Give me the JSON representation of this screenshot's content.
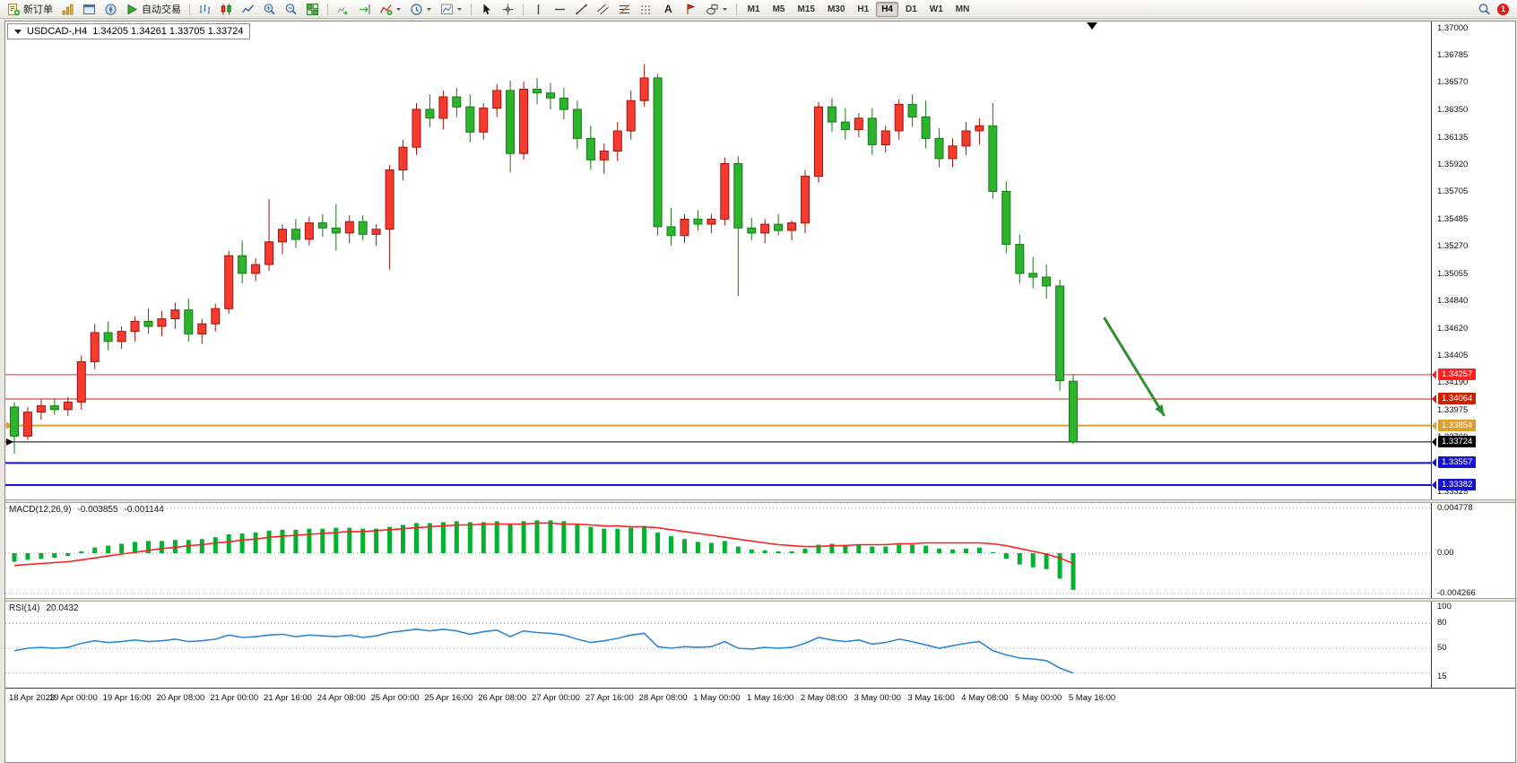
{
  "toolbar": {
    "new_order_label": "新订单",
    "auto_trading_label": "自动交易",
    "text_tool_label": "A",
    "timeframes": [
      "M1",
      "M5",
      "M15",
      "M30",
      "H1",
      "H4",
      "D1",
      "W1",
      "MN"
    ],
    "active_timeframe": "H4",
    "notification_count": "1"
  },
  "chart": {
    "symbol_label": "USDCAD-,H4",
    "ohlc_text": "1.34205 1.34261 1.33705 1.33724"
  },
  "chart_data": {
    "type": "candlestick",
    "symbol": "USDCAD",
    "timeframe": "H4",
    "current_ohlc": {
      "open": 1.34205,
      "high": 1.34261,
      "low": 1.33705,
      "close": 1.33724
    },
    "colors": {
      "bull": "#f53b30",
      "bull_edge": "#a31208",
      "bear": "#2db32d",
      "bear_edge": "#157a15",
      "macd_histogram": "#00b22d",
      "macd_signal": "#ff2020",
      "rsi_line": "#2f86d4",
      "arrow": "#2f8f2f"
    },
    "price_axis_ticks": [
      "1.37000",
      "1.36785",
      "1.36570",
      "1.36350",
      "1.36135",
      "1.35920",
      "1.35705",
      "1.35485",
      "1.35270",
      "1.35055",
      "1.34840",
      "1.34620",
      "1.34405",
      "1.34190",
      "1.33975",
      "1.33760",
      "1.33545",
      "1.33325"
    ],
    "time_labels": [
      "18 Apr 2023",
      "19 Apr 00:00",
      "19 Apr 16:00",
      "20 Apr 08:00",
      "21 Apr 00:00",
      "21 Apr 16:00",
      "24 Apr 08:00",
      "25 Apr 00:00",
      "25 Apr 16:00",
      "26 Apr 08:00",
      "27 Apr 00:00",
      "27 Apr 16:00",
      "28 Apr 08:00",
      "1 May 00:00",
      "1 May 16:00",
      "2 May 08:00",
      "3 May 00:00",
      "3 May 16:00",
      "4 May 08:00",
      "5 May 00:00",
      "5 May 16:00"
    ],
    "hlines": [
      {
        "price": 1.34257,
        "label": "1.34257",
        "color": "#ff2020",
        "width": 1,
        "left_marker": false
      },
      {
        "price": 1.34064,
        "label": "1.34064",
        "color": "#cc2200",
        "width": 1,
        "left_marker": false
      },
      {
        "price": 1.33854,
        "label": "1.33854",
        "color": "#dd9f2e",
        "width": 2,
        "left_marker": true
      },
      {
        "price": 1.33724,
        "label": "1.33724",
        "color": "#000000",
        "width": 1,
        "left_marker": true
      },
      {
        "price": 1.33557,
        "label": "1.33557",
        "color": "#1414cc",
        "width": 2,
        "left_marker": false
      },
      {
        "price": 1.33382,
        "label": "1.33382",
        "color": "#1414cc",
        "width": 2,
        "left_marker": false
      }
    ],
    "arrow": {
      "from": {
        "index": 81.3,
        "price": 1.3471
      },
      "to": {
        "index": 85.8,
        "price": 1.3393
      }
    },
    "candles": [
      [
        1.34,
        1.3404,
        1.3363,
        1.3377
      ],
      [
        1.3377,
        1.34,
        1.3374,
        1.3396
      ],
      [
        1.3396,
        1.3406,
        1.339,
        1.3401
      ],
      [
        1.3401,
        1.3407,
        1.3394,
        1.3398
      ],
      [
        1.3398,
        1.3408,
        1.3393,
        1.3404
      ],
      [
        1.3404,
        1.3441,
        1.3398,
        1.3436
      ],
      [
        1.3436,
        1.3466,
        1.343,
        1.3459
      ],
      [
        1.3459,
        1.3468,
        1.3445,
        1.3452
      ],
      [
        1.3452,
        1.3464,
        1.3446,
        1.346
      ],
      [
        1.346,
        1.3472,
        1.3452,
        1.3468
      ],
      [
        1.3468,
        1.3478,
        1.3458,
        1.3464
      ],
      [
        1.3464,
        1.3476,
        1.3456,
        1.347
      ],
      [
        1.347,
        1.3483,
        1.3462,
        1.3477
      ],
      [
        1.3477,
        1.3486,
        1.3452,
        1.3458
      ],
      [
        1.3458,
        1.347,
        1.345,
        1.3466
      ],
      [
        1.3466,
        1.3482,
        1.346,
        1.3478
      ],
      [
        1.3478,
        1.3524,
        1.3474,
        1.352
      ],
      [
        1.352,
        1.3532,
        1.3498,
        1.3506
      ],
      [
        1.3506,
        1.3518,
        1.35,
        1.3513
      ],
      [
        1.3513,
        1.3565,
        1.3508,
        1.3531
      ],
      [
        1.3531,
        1.3545,
        1.3521,
        1.3541
      ],
      [
        1.3541,
        1.3549,
        1.3526,
        1.3533
      ],
      [
        1.3533,
        1.3551,
        1.3528,
        1.3546
      ],
      [
        1.3546,
        1.3553,
        1.3535,
        1.3542
      ],
      [
        1.3542,
        1.3561,
        1.3524,
        1.3538
      ],
      [
        1.3538,
        1.3552,
        1.353,
        1.3547
      ],
      [
        1.3547,
        1.3552,
        1.3532,
        1.3537
      ],
      [
        1.3537,
        1.3545,
        1.3528,
        1.3541
      ],
      [
        1.3541,
        1.3592,
        1.3509,
        1.3588
      ],
      [
        1.3588,
        1.3612,
        1.358,
        1.3606
      ],
      [
        1.3606,
        1.3641,
        1.36,
        1.3636
      ],
      [
        1.3636,
        1.3648,
        1.3622,
        1.3629
      ],
      [
        1.3629,
        1.3651,
        1.362,
        1.3646
      ],
      [
        1.3646,
        1.3653,
        1.363,
        1.3638
      ],
      [
        1.3638,
        1.3648,
        1.361,
        1.3618
      ],
      [
        1.3618,
        1.3641,
        1.3612,
        1.3637
      ],
      [
        1.3637,
        1.3656,
        1.363,
        1.3651
      ],
      [
        1.3651,
        1.3659,
        1.3586,
        1.3601
      ],
      [
        1.3601,
        1.3658,
        1.3596,
        1.3652
      ],
      [
        1.3652,
        1.3661,
        1.364,
        1.3649
      ],
      [
        1.3649,
        1.3657,
        1.3636,
        1.3645
      ],
      [
        1.3645,
        1.3653,
        1.3628,
        1.3636
      ],
      [
        1.3636,
        1.3643,
        1.3605,
        1.3613
      ],
      [
        1.3613,
        1.3623,
        1.3588,
        1.3596
      ],
      [
        1.3596,
        1.3609,
        1.3585,
        1.3603
      ],
      [
        1.3603,
        1.3626,
        1.3595,
        1.3619
      ],
      [
        1.3619,
        1.3651,
        1.3612,
        1.3643
      ],
      [
        1.3643,
        1.3672,
        1.3638,
        1.3661
      ],
      [
        1.3661,
        1.3664,
        1.3536,
        1.3543
      ],
      [
        1.3543,
        1.3558,
        1.3528,
        1.3536
      ],
      [
        1.3536,
        1.3553,
        1.353,
        1.3549
      ],
      [
        1.3549,
        1.3556,
        1.354,
        1.3545
      ],
      [
        1.3545,
        1.3553,
        1.3538,
        1.3549
      ],
      [
        1.3549,
        1.3598,
        1.3544,
        1.3593
      ],
      [
        1.3593,
        1.3599,
        1.3488,
        1.3542
      ],
      [
        1.3542,
        1.355,
        1.3532,
        1.3538
      ],
      [
        1.3538,
        1.3549,
        1.353,
        1.3545
      ],
      [
        1.3545,
        1.3553,
        1.3536,
        1.354
      ],
      [
        1.354,
        1.3548,
        1.3532,
        1.3546
      ],
      [
        1.3546,
        1.3588,
        1.3538,
        1.3583
      ],
      [
        1.3583,
        1.3642,
        1.3578,
        1.3638
      ],
      [
        1.3638,
        1.3645,
        1.3618,
        1.3626
      ],
      [
        1.3626,
        1.3637,
        1.3612,
        1.362
      ],
      [
        1.362,
        1.3633,
        1.3614,
        1.3629
      ],
      [
        1.3629,
        1.3637,
        1.36,
        1.3608
      ],
      [
        1.3608,
        1.3623,
        1.3602,
        1.3619
      ],
      [
        1.3619,
        1.3644,
        1.3612,
        1.364
      ],
      [
        1.364,
        1.3648,
        1.3622,
        1.363
      ],
      [
        1.363,
        1.3643,
        1.3605,
        1.3613
      ],
      [
        1.3613,
        1.3621,
        1.359,
        1.3597
      ],
      [
        1.3597,
        1.3613,
        1.359,
        1.3607
      ],
      [
        1.3607,
        1.3626,
        1.36,
        1.3619
      ],
      [
        1.3619,
        1.3629,
        1.3608,
        1.3623
      ],
      [
        1.3623,
        1.3641,
        1.3565,
        1.3571
      ],
      [
        1.3571,
        1.3579,
        1.3522,
        1.3529
      ],
      [
        1.3529,
        1.3537,
        1.3498,
        1.3506
      ],
      [
        1.3506,
        1.3519,
        1.3494,
        1.3503
      ],
      [
        1.3503,
        1.3513,
        1.3486,
        1.3496
      ],
      [
        1.3496,
        1.3501,
        1.3413,
        1.3421
      ],
      [
        1.34205,
        1.34261,
        1.33705,
        1.33724
      ]
    ],
    "macd": {
      "name_label": "MACD(12,26,9)",
      "value_main": "-0.003855",
      "value_signal": "-0.001144",
      "axis_ticks": [
        {
          "label": "0.004778",
          "value": 0.004778
        },
        {
          "label": "0.00",
          "value": 0
        },
        {
          "label": "-0.004266",
          "value": -0.004266
        }
      ],
      "histogram": [
        -0.0009,
        -0.0007,
        -0.0006,
        -0.0005,
        -0.0003,
        0.0002,
        0.0006,
        0.0008,
        0.001,
        0.0012,
        0.0013,
        0.0013,
        0.0014,
        0.0014,
        0.0015,
        0.0017,
        0.002,
        0.0021,
        0.0022,
        0.0024,
        0.0025,
        0.0025,
        0.0026,
        0.0026,
        0.0027,
        0.0027,
        0.0026,
        0.0026,
        0.0028,
        0.003,
        0.0032,
        0.0032,
        0.0033,
        0.0034,
        0.0033,
        0.0033,
        0.0034,
        0.0031,
        0.0034,
        0.0035,
        0.0035,
        0.0034,
        0.0031,
        0.0028,
        0.0026,
        0.0026,
        0.0027,
        0.0029,
        0.0022,
        0.0018,
        0.0015,
        0.0012,
        0.0011,
        0.0013,
        0.0007,
        0.0004,
        0.0003,
        0.0002,
        0.0002,
        0.0005,
        0.0009,
        0.001,
        0.0009,
        0.0009,
        0.0007,
        0.0007,
        0.0009,
        0.0009,
        0.0008,
        0.0005,
        0.0004,
        0.0005,
        0.0006,
        0.0001,
        -0.0006,
        -0.0012,
        -0.0015,
        -0.0017,
        -0.0027,
        -0.0039
      ],
      "signal": [
        -0.0013,
        -0.0012,
        -0.0011,
        -0.001,
        -0.0009,
        -0.0007,
        -0.0005,
        -0.0003,
        -0.0001,
        0.0001,
        0.0003,
        0.0005,
        0.0006,
        0.0008,
        0.0009,
        0.0011,
        0.0012,
        0.0014,
        0.0015,
        0.0017,
        0.0018,
        0.0019,
        0.002,
        0.0021,
        0.0022,
        0.0023,
        0.0023,
        0.0024,
        0.0025,
        0.0026,
        0.0027,
        0.0028,
        0.0029,
        0.003,
        0.003,
        0.0031,
        0.0031,
        0.0031,
        0.0031,
        0.0032,
        0.0032,
        0.0031,
        0.0031,
        0.003,
        0.0029,
        0.0029,
        0.0028,
        0.0028,
        0.0027,
        0.0025,
        0.0023,
        0.0021,
        0.0019,
        0.0017,
        0.0015,
        0.0013,
        0.0011,
        0.0009,
        0.0008,
        0.0007,
        0.0007,
        0.0008,
        0.0008,
        0.0009,
        0.0009,
        0.0009,
        0.001,
        0.001,
        0.0011,
        0.0011,
        0.0011,
        0.0011,
        0.0011,
        0.001,
        0.0008,
        0.0005,
        0.0002,
        -0.0001,
        -0.0005,
        -0.0011
      ]
    },
    "rsi": {
      "name_label": "RSI(14)",
      "value": "20.0432",
      "axis_ticks": [
        {
          "label": "100",
          "value": 100
        },
        {
          "label": "80",
          "value": 80
        },
        {
          "label": "50",
          "value": 50
        },
        {
          "label": "15",
          "value": 15
        }
      ],
      "levels": [
        80,
        50,
        20
      ],
      "values": [
        47,
        50,
        51,
        50,
        51,
        56,
        59,
        57,
        58,
        60,
        58,
        59,
        61,
        58,
        59,
        61,
        66,
        63,
        64,
        66,
        67,
        64,
        66,
        65,
        64,
        66,
        63,
        65,
        69,
        71,
        73,
        71,
        73,
        71,
        67,
        70,
        72,
        64,
        71,
        69,
        68,
        66,
        61,
        57,
        59,
        62,
        66,
        68,
        52,
        50,
        52,
        51,
        52,
        58,
        50,
        49,
        51,
        50,
        51,
        56,
        63,
        60,
        58,
        60,
        55,
        57,
        61,
        58,
        54,
        50,
        53,
        56,
        58,
        47,
        42,
        38,
        37,
        35,
        26,
        20.04
      ]
    }
  }
}
